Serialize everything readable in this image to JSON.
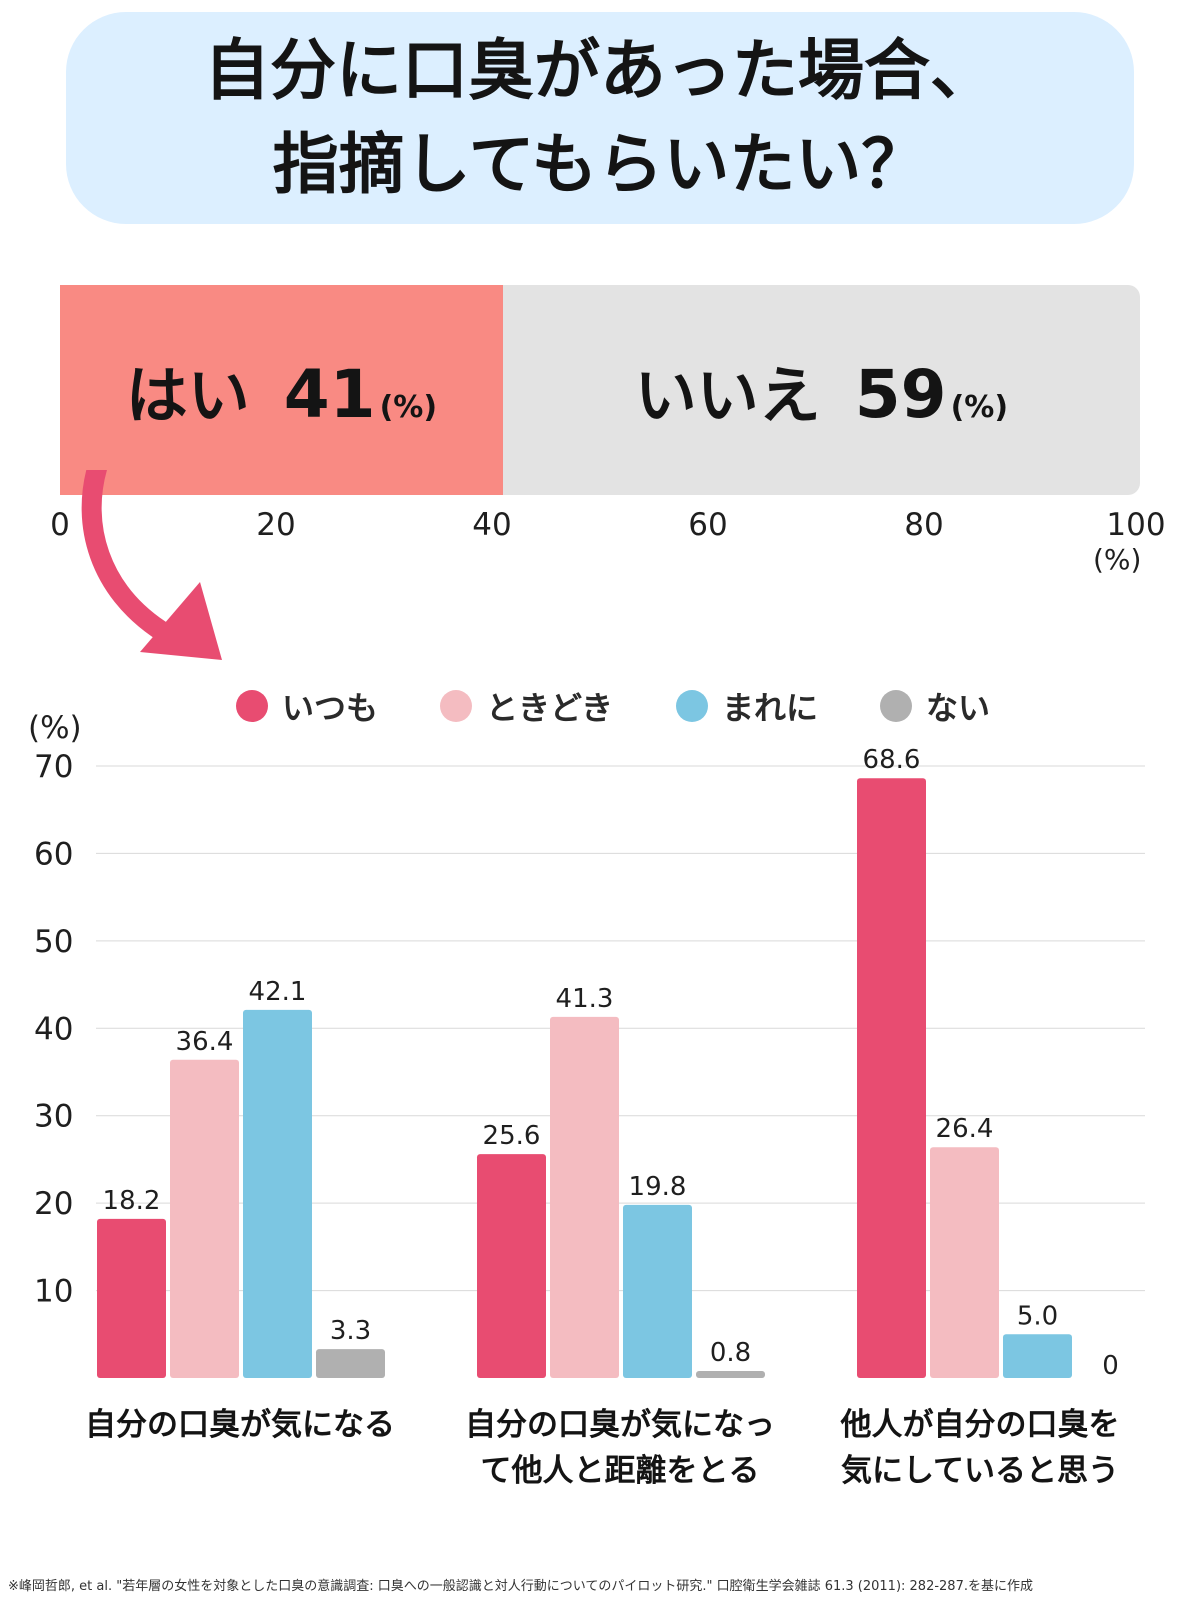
{
  "title": {
    "line1": "自分に口臭があった場合、",
    "line2": "指摘してもらいたい？"
  },
  "summary_bar": {
    "yes_label": "はい",
    "yes_value": 41,
    "yes_unit": "(%)",
    "no_label": "いいえ",
    "no_value": 59,
    "no_unit": "(%)",
    "axis_ticks": [
      "0",
      "20",
      "40",
      "60",
      "80",
      "100"
    ],
    "axis_unit": "(%)",
    "colors": {
      "yes": "#f98a83",
      "no": "#e3e3e3"
    }
  },
  "legend": [
    {
      "label": "いつも",
      "color": "#e84c71"
    },
    {
      "label": "ときどき",
      "color": "#f4bcc1"
    },
    {
      "label": "まれに",
      "color": "#7cc6e2"
    },
    {
      "label": "ない",
      "color": "#b0b0b0"
    }
  ],
  "chart_data": {
    "type": "bar",
    "ylabel": "(%)",
    "ylim": [
      0,
      70
    ],
    "yticks": [
      10,
      20,
      30,
      40,
      50,
      60,
      70
    ],
    "grid": true,
    "legend_position": "top",
    "categories": [
      [
        "自分の口臭が気になる"
      ],
      [
        "自分の口臭が気になっ",
        "て他人と距離をとる"
      ],
      [
        "他人が自分の口臭を",
        "気にしていると思う"
      ]
    ],
    "series": [
      {
        "name": "いつも",
        "color": "#e84c71",
        "values": [
          18.2,
          25.6,
          68.6
        ],
        "labels": [
          "18.2",
          "25.6",
          "68.6"
        ]
      },
      {
        "name": "ときどき",
        "color": "#f4bcc1",
        "values": [
          36.4,
          41.3,
          26.4
        ],
        "labels": [
          "36.4",
          "41.3",
          "26.4"
        ]
      },
      {
        "name": "まれに",
        "color": "#7cc6e2",
        "values": [
          42.1,
          19.8,
          5.0
        ],
        "labels": [
          "42.1",
          "19.8",
          "5.0"
        ]
      },
      {
        "name": "ない",
        "color": "#b0b0b0",
        "values": [
          3.3,
          0.8,
          0
        ],
        "labels": [
          "3.3",
          "0.8",
          "0"
        ]
      }
    ]
  },
  "footnote": "※峰岡哲郎, et al. \"若年層の女性を対象とした口臭の意識調査: 口臭への一般認識と対人行動についてのパイロット研究.\" 口腔衛生学会雑誌 61.3 (2011): 282-287.を基に作成"
}
